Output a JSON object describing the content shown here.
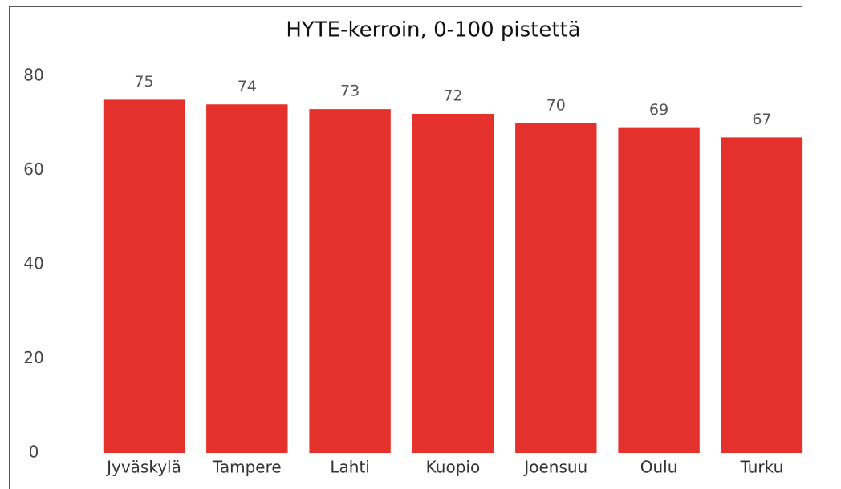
{
  "chart_data": {
    "type": "bar",
    "title": "HYTE-kerroin, 0-100 pistettä",
    "categories": [
      "Jyväskylä",
      "Tampere",
      "Lahti",
      "Kuopio",
      "Joensuu",
      "Oulu",
      "Turku"
    ],
    "values": [
      75,
      74,
      73,
      72,
      70,
      69,
      67
    ],
    "color": "#e5312b",
    "ylim": [
      0,
      80
    ],
    "yticks": [
      0,
      20,
      40,
      60,
      80
    ],
    "grid": false
  }
}
